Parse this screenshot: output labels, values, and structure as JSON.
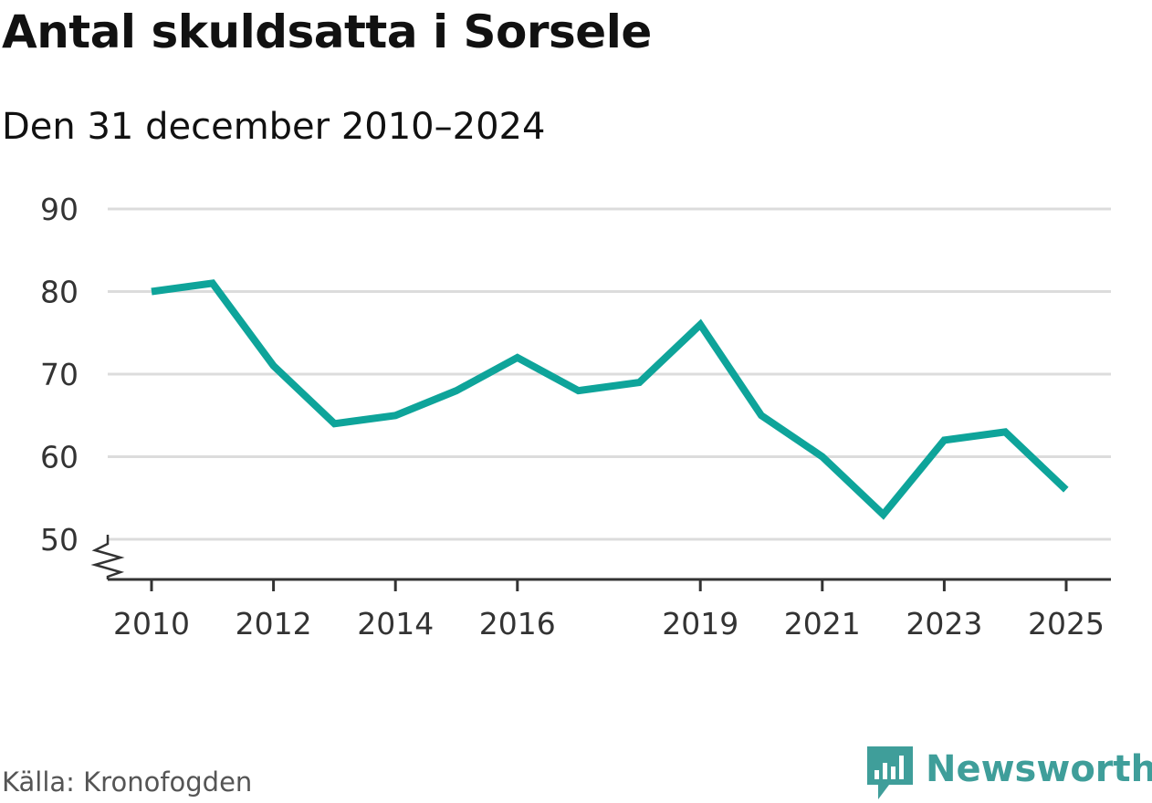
{
  "title": "Antal skuldsatta i Sorsele",
  "subtitle": "Den 31 december 2010–2024",
  "source": "Källa: Kronofogden",
  "brand": {
    "name": "Newsworthy",
    "icon": "newsworthy-bar-chart-icon",
    "color": "#3f9e9a"
  },
  "colors": {
    "line": "#0ea49a",
    "grid": "#dcdcdc",
    "axis": "#333333"
  },
  "chart_data": {
    "type": "line",
    "x_type": "date",
    "x_tick_labels": [
      "2010",
      "2012",
      "2014",
      "2016",
      "2019",
      "2021",
      "2023",
      "2025"
    ],
    "y_ticks": [
      50,
      60,
      70,
      80,
      90
    ],
    "ylim": [
      45,
      90
    ],
    "y_axis_break": true,
    "grid": "horizontal",
    "series": [
      {
        "points": [
          {
            "date": "2010-01-01",
            "value": 80
          },
          {
            "date": "2011-01-01",
            "value": 81
          },
          {
            "date": "2012-01-01",
            "value": 71
          },
          {
            "date": "2013-01-01",
            "value": 64
          },
          {
            "date": "2014-01-01",
            "value": 65
          },
          {
            "date": "2015-01-01",
            "value": 68
          },
          {
            "date": "2016-01-01",
            "value": 72
          },
          {
            "date": "2017-01-01",
            "value": 68
          },
          {
            "date": "2018-01-01",
            "value": 69
          },
          {
            "date": "2019-01-01",
            "value": 76
          },
          {
            "date": "2020-01-01",
            "value": 65
          },
          {
            "date": "2021-01-01",
            "value": 60
          },
          {
            "date": "2022-01-01",
            "value": 53
          },
          {
            "date": "2023-01-01",
            "value": 62
          },
          {
            "date": "2024-01-01",
            "value": 63
          },
          {
            "date": "2024-12-31",
            "value": 56
          }
        ]
      }
    ]
  }
}
